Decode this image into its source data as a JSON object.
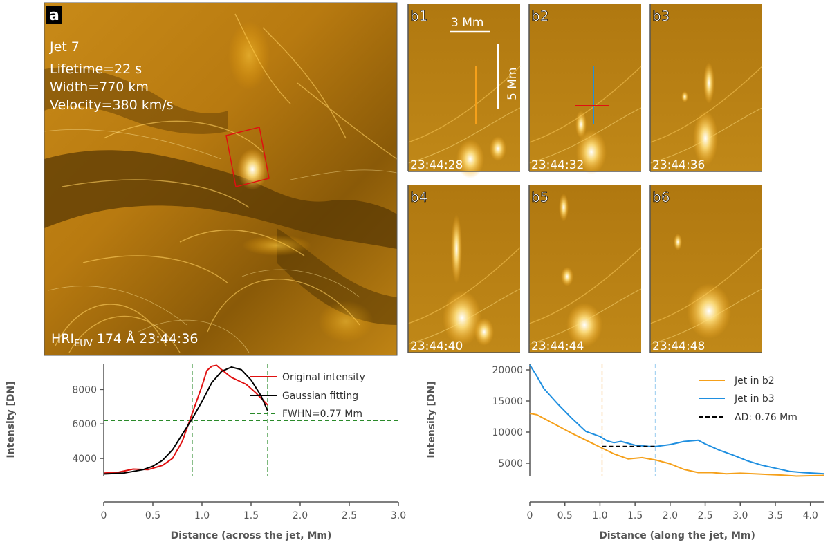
{
  "main_image": {
    "label": "a",
    "jet_name": "Jet 7",
    "lifetime": "Lifetime=22 s",
    "width": "Width=770 km",
    "velocity": "Velocity=380 km/s",
    "instrument_main": "HRI",
    "instrument_sub": "EUV",
    "instrument_rest": " 174 Å 23:44:36",
    "box_color": "#e01010"
  },
  "panels": [
    {
      "label": "b1",
      "time": "23:44:28"
    },
    {
      "label": "b2",
      "time": "23:44:32"
    },
    {
      "label": "b3",
      "time": "23:44:36"
    },
    {
      "label": "b4",
      "time": "23:44:40"
    },
    {
      "label": "b5",
      "time": "23:44:44"
    },
    {
      "label": "b6",
      "time": "23:44:48"
    }
  ],
  "scale_bars": {
    "horizontal": "3 Mm",
    "vertical": "5 Mm"
  },
  "colors": {
    "solar_base": "#b07a10",
    "jet_b2": "#f5a01a",
    "jet_b3": "#1f8fe0",
    "orig": "#e01010",
    "gauss": "#000000",
    "fwhm": "#2a8a2a"
  },
  "chart_data": [
    {
      "type": "line",
      "xlabel": "Distance (across the jet, Mm)",
      "ylabel": "Intensity [DN]",
      "xlim": [
        0,
        3.0
      ],
      "ylim": [
        3000,
        9500
      ],
      "xticks": [
        "0",
        "0.5",
        "1.0",
        "1.5",
        "2.0",
        "2.5",
        "3.0"
      ],
      "yticks": [
        "4000",
        "6000",
        "8000"
      ],
      "legend_position": "top-right",
      "series": [
        {
          "name": "Original intensity",
          "x": [
            0,
            0.15,
            0.3,
            0.45,
            0.6,
            0.7,
            0.8,
            0.9,
            1.0,
            1.05,
            1.1,
            1.15,
            1.2,
            1.3,
            1.45,
            1.55,
            1.67
          ],
          "y": [
            3150,
            3200,
            3380,
            3350,
            3600,
            4000,
            5000,
            6600,
            8200,
            9100,
            9350,
            9400,
            9150,
            8700,
            8300,
            7800,
            7100
          ]
        },
        {
          "name": "Gaussian fitting",
          "x": [
            0,
            0.2,
            0.4,
            0.5,
            0.6,
            0.7,
            0.8,
            0.9,
            1.0,
            1.1,
            1.2,
            1.3,
            1.4,
            1.5,
            1.6,
            1.67
          ],
          "y": [
            3100,
            3150,
            3350,
            3550,
            3900,
            4500,
            5400,
            6300,
            7300,
            8400,
            9050,
            9300,
            9150,
            8550,
            7650,
            6750
          ]
        },
        {
          "name": "FWHN=0.77 Mm",
          "hline": 6200,
          "vlines": [
            0.9,
            1.67
          ]
        }
      ]
    },
    {
      "type": "line",
      "xlabel": "Distance (along the jet, Mm)",
      "ylabel": "Intensity [DN]",
      "xlim": [
        0,
        4.2
      ],
      "ylim": [
        3000,
        21000
      ],
      "xticks": [
        "0",
        "0.5",
        "1.0",
        "1.5",
        "2.0",
        "2.5",
        "3.0",
        "3.5",
        "4.0"
      ],
      "yticks": [
        "5000",
        "10000",
        "15000",
        "20000"
      ],
      "legend_position": "top-right",
      "series": [
        {
          "name": "Jet in b2",
          "x": [
            0,
            0.1,
            0.2,
            0.4,
            0.6,
            0.8,
            1.0,
            1.2,
            1.4,
            1.6,
            1.8,
            2.0,
            2.2,
            2.4,
            2.6,
            2.8,
            3.0,
            3.2,
            3.4,
            3.6,
            3.8,
            4.0,
            4.2
          ],
          "y": [
            13000,
            12800,
            12200,
            11000,
            9800,
            8700,
            7600,
            6500,
            5700,
            5900,
            5500,
            4900,
            4000,
            3500,
            3500,
            3300,
            3400,
            3300,
            3200,
            3100,
            2950,
            3000,
            3050
          ]
        },
        {
          "name": "Jet in b3",
          "x": [
            0,
            0.1,
            0.2,
            0.4,
            0.6,
            0.8,
            1.0,
            1.1,
            1.2,
            1.3,
            1.5,
            1.7,
            1.8,
            2.0,
            2.2,
            2.3,
            2.4,
            2.5,
            2.7,
            2.9,
            3.1,
            3.3,
            3.5,
            3.7,
            3.9,
            4.2
          ],
          "y": [
            20800,
            19000,
            17000,
            14500,
            12200,
            10100,
            9300,
            8600,
            8300,
            8500,
            7900,
            7700,
            7700,
            8000,
            8500,
            8600,
            8700,
            8100,
            7100,
            6300,
            5400,
            4700,
            4200,
            3700,
            3500,
            3300
          ]
        },
        {
          "name": "ΔD: 0.76 Mm",
          "dashed_segment": {
            "x": [
              1.03,
              1.79
            ],
            "y": 7700
          },
          "vlines": [
            1.03,
            1.79
          ]
        }
      ]
    }
  ]
}
